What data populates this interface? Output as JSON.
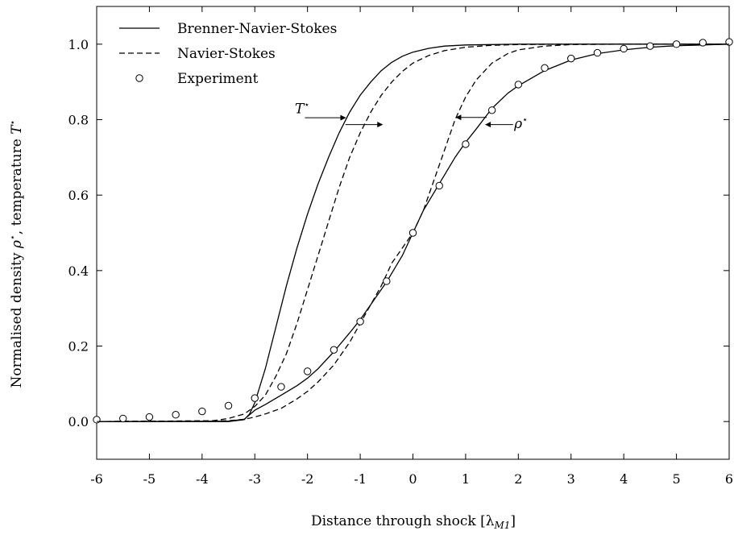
{
  "chart_data": {
    "type": "line",
    "xlabel": "Distance through shock [λ",
    "xlabel_sub": "M1",
    "xlabel_close": "]",
    "ylabel_pre": "Normalised density ",
    "ylabel_rho": "ρ",
    "ylabel_mid": ", temperature ",
    "ylabel_T": "T",
    "star": "⋆",
    "xlim": [
      -6,
      6
    ],
    "ylim": [
      -0.1,
      1.1
    ],
    "x_ticks": [
      -6,
      -5,
      -4,
      -3,
      -2,
      -1,
      0,
      1,
      2,
      3,
      4,
      5,
      6
    ],
    "x_tick_labels": [
      "-6",
      "-5",
      "-4",
      "-3",
      "-2",
      "-1",
      "0",
      "1",
      "2",
      "3",
      "4",
      "5",
      "6"
    ],
    "y_ticks": [
      0,
      0.2,
      0.4,
      0.6,
      0.8,
      1.0
    ],
    "y_tick_labels": [
      "0.0",
      "0.2",
      "0.4",
      "0.6",
      "0.8",
      "1.0"
    ],
    "legend_position": "top-left",
    "legend": [
      {
        "label": "Brenner-Navier-Stokes",
        "style": "solid"
      },
      {
        "label": "Navier-Stokes",
        "style": "dashed"
      },
      {
        "label": "Experiment",
        "style": "circle"
      }
    ],
    "series": [
      {
        "name": "Brenner-Navier-Stokes",
        "quantity": "temperature",
        "style": "solid",
        "x": [
          -6,
          -3.5,
          -3.2,
          -3.1,
          -3.0,
          -2.8,
          -2.6,
          -2.4,
          -2.2,
          -2.0,
          -1.8,
          -1.6,
          -1.4,
          -1.2,
          -1.0,
          -0.8,
          -0.6,
          -0.4,
          -0.2,
          0.0,
          0.3,
          0.6,
          1.0,
          1.5,
          2.0,
          3.0,
          6.0
        ],
        "y": [
          0,
          0,
          0.005,
          0.02,
          0.05,
          0.14,
          0.25,
          0.36,
          0.46,
          0.55,
          0.63,
          0.7,
          0.765,
          0.82,
          0.865,
          0.9,
          0.93,
          0.952,
          0.968,
          0.979,
          0.989,
          0.995,
          0.998,
          0.999,
          1.0,
          1.0,
          1.0
        ]
      },
      {
        "name": "Navier-Stokes",
        "quantity": "temperature",
        "style": "dashed",
        "x": [
          -6,
          -3.8,
          -3.5,
          -3.2,
          -3.0,
          -2.8,
          -2.6,
          -2.4,
          -2.2,
          -2.0,
          -1.8,
          -1.6,
          -1.4,
          -1.2,
          -1.0,
          -0.8,
          -0.6,
          -0.4,
          -0.2,
          0.0,
          0.3,
          0.6,
          1.0,
          1.5,
          2.0,
          3.0,
          6.0
        ],
        "y": [
          0,
          0.002,
          0.008,
          0.02,
          0.04,
          0.07,
          0.12,
          0.18,
          0.26,
          0.35,
          0.44,
          0.53,
          0.62,
          0.7,
          0.765,
          0.82,
          0.865,
          0.9,
          0.928,
          0.95,
          0.97,
          0.983,
          0.992,
          0.997,
          0.999,
          1.0,
          1.0
        ]
      },
      {
        "name": "Brenner-Navier-Stokes",
        "quantity": "density",
        "style": "solid",
        "x": [
          -6,
          -3.5,
          -3.2,
          -3.0,
          -2.8,
          -2.5,
          -2.2,
          -2.0,
          -1.8,
          -1.5,
          -1.2,
          -1.0,
          -0.8,
          -0.5,
          -0.2,
          0.0,
          0.2,
          0.5,
          0.8,
          1.0,
          1.2,
          1.5,
          1.8,
          2.0,
          2.5,
          3.0,
          3.5,
          4.0,
          4.5,
          5.0,
          5.5,
          6.0
        ],
        "y": [
          0,
          0.001,
          0.006,
          0.03,
          0.045,
          0.07,
          0.095,
          0.115,
          0.14,
          0.185,
          0.235,
          0.27,
          0.31,
          0.37,
          0.44,
          0.5,
          0.56,
          0.63,
          0.7,
          0.74,
          0.775,
          0.83,
          0.87,
          0.89,
          0.93,
          0.958,
          0.975,
          0.985,
          0.992,
          0.996,
          0.998,
          1.0
        ]
      },
      {
        "name": "Navier-Stokes",
        "quantity": "density",
        "style": "dashed",
        "x": [
          -6,
          -3.5,
          -3.2,
          -3.0,
          -2.8,
          -2.5,
          -2.2,
          -2.0,
          -1.8,
          -1.5,
          -1.2,
          -1.0,
          -0.8,
          -0.6,
          -0.4,
          -0.2,
          0.0,
          0.2,
          0.4,
          0.6,
          0.8,
          1.0,
          1.2,
          1.5,
          1.8,
          2.0,
          2.5,
          3.0,
          4.0,
          6.0
        ],
        "y": [
          0,
          0.002,
          0.006,
          0.012,
          0.02,
          0.035,
          0.06,
          0.08,
          0.105,
          0.15,
          0.21,
          0.26,
          0.31,
          0.36,
          0.42,
          0.46,
          0.5,
          0.56,
          0.64,
          0.72,
          0.8,
          0.86,
          0.905,
          0.95,
          0.975,
          0.985,
          0.995,
          0.999,
          1.0,
          1.0
        ]
      },
      {
        "name": "Experiment",
        "quantity": "density",
        "style": "circle",
        "x": [
          -6,
          -5.5,
          -5,
          -4.5,
          -4,
          -3.5,
          -3,
          -2.5,
          -2,
          -1.5,
          -1,
          -0.5,
          0,
          0.5,
          1,
          1.5,
          2,
          2.5,
          3,
          3.5,
          4,
          4.5,
          5,
          5.5,
          6
        ],
        "y": [
          0.005,
          0.008,
          0.012,
          0.018,
          0.027,
          0.042,
          0.062,
          0.092,
          0.133,
          0.19,
          0.265,
          0.372,
          0.5,
          0.625,
          0.735,
          0.825,
          0.893,
          0.937,
          0.962,
          0.977,
          0.988,
          0.995,
          1.0,
          1.004,
          1.006
        ]
      }
    ],
    "annotations": [
      {
        "text": "T",
        "label_x": -2.1,
        "label_y": 0.83,
        "arrow_from": [
          -2.05,
          0.805
        ],
        "arrow_to": [
          -1.28,
          0.805
        ],
        "arrow2_from": [
          -1.28,
          0.787
        ],
        "arrow2_to": [
          -0.58,
          0.787
        ]
      },
      {
        "text": "ρ",
        "label_x": 2.05,
        "label_y": 0.79,
        "arrow_from": [
          1.4,
          0.806
        ],
        "arrow_to": [
          0.82,
          0.806
        ],
        "arrow2_from": [
          1.9,
          0.787
        ],
        "arrow2_to": [
          1.38,
          0.787
        ]
      }
    ]
  }
}
